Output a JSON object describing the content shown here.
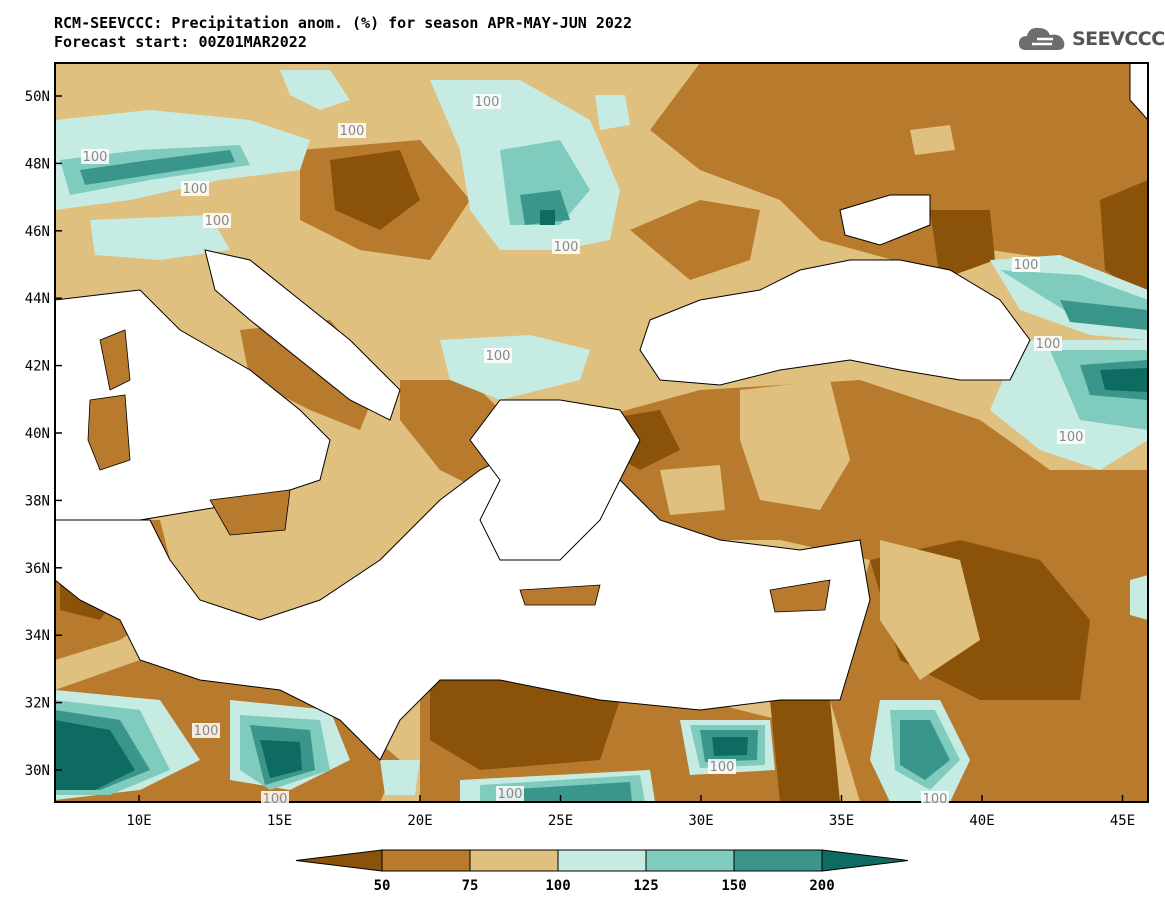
{
  "header": {
    "title_line1": "RCM-SEEVCCC: Precipitation anom. (%) for season APR-MAY-JUN 2022",
    "title_line2": "Forecast start: 00Z01MAR2022",
    "logo_text": "SEEVCCC"
  },
  "axes": {
    "lat_labels": [
      "50N",
      "48N",
      "46N",
      "44N",
      "42N",
      "40N",
      "38N",
      "36N",
      "34N",
      "32N",
      "30N"
    ],
    "lon_labels": [
      "10E",
      "15E",
      "20E",
      "25E",
      "30E",
      "35E",
      "40E",
      "45E"
    ]
  },
  "contour_labels": [
    "100",
    "100",
    "100",
    "100",
    "100",
    "100",
    "100",
    "100",
    "100",
    "100",
    "100",
    "100",
    "100",
    "100",
    "100"
  ],
  "colorbar": {
    "ticks": [
      "50",
      "75",
      "100",
      "125",
      "150",
      "200"
    ],
    "colors": [
      "#8b5209",
      "#b87a2d",
      "#dfc07e",
      "#c6ebe3",
      "#7fcbbd",
      "#3a968a",
      "#0e6b61"
    ]
  },
  "legend_colors": {
    "land_dry_extreme": "#8b5209",
    "land_dry": "#b87a2d",
    "land_mid": "#dfc07e",
    "wet1": "#c6ebe3",
    "wet2": "#7fcbbd",
    "wet3": "#3a968a",
    "wet4": "#0e6b61",
    "sea": "#ffffff"
  }
}
